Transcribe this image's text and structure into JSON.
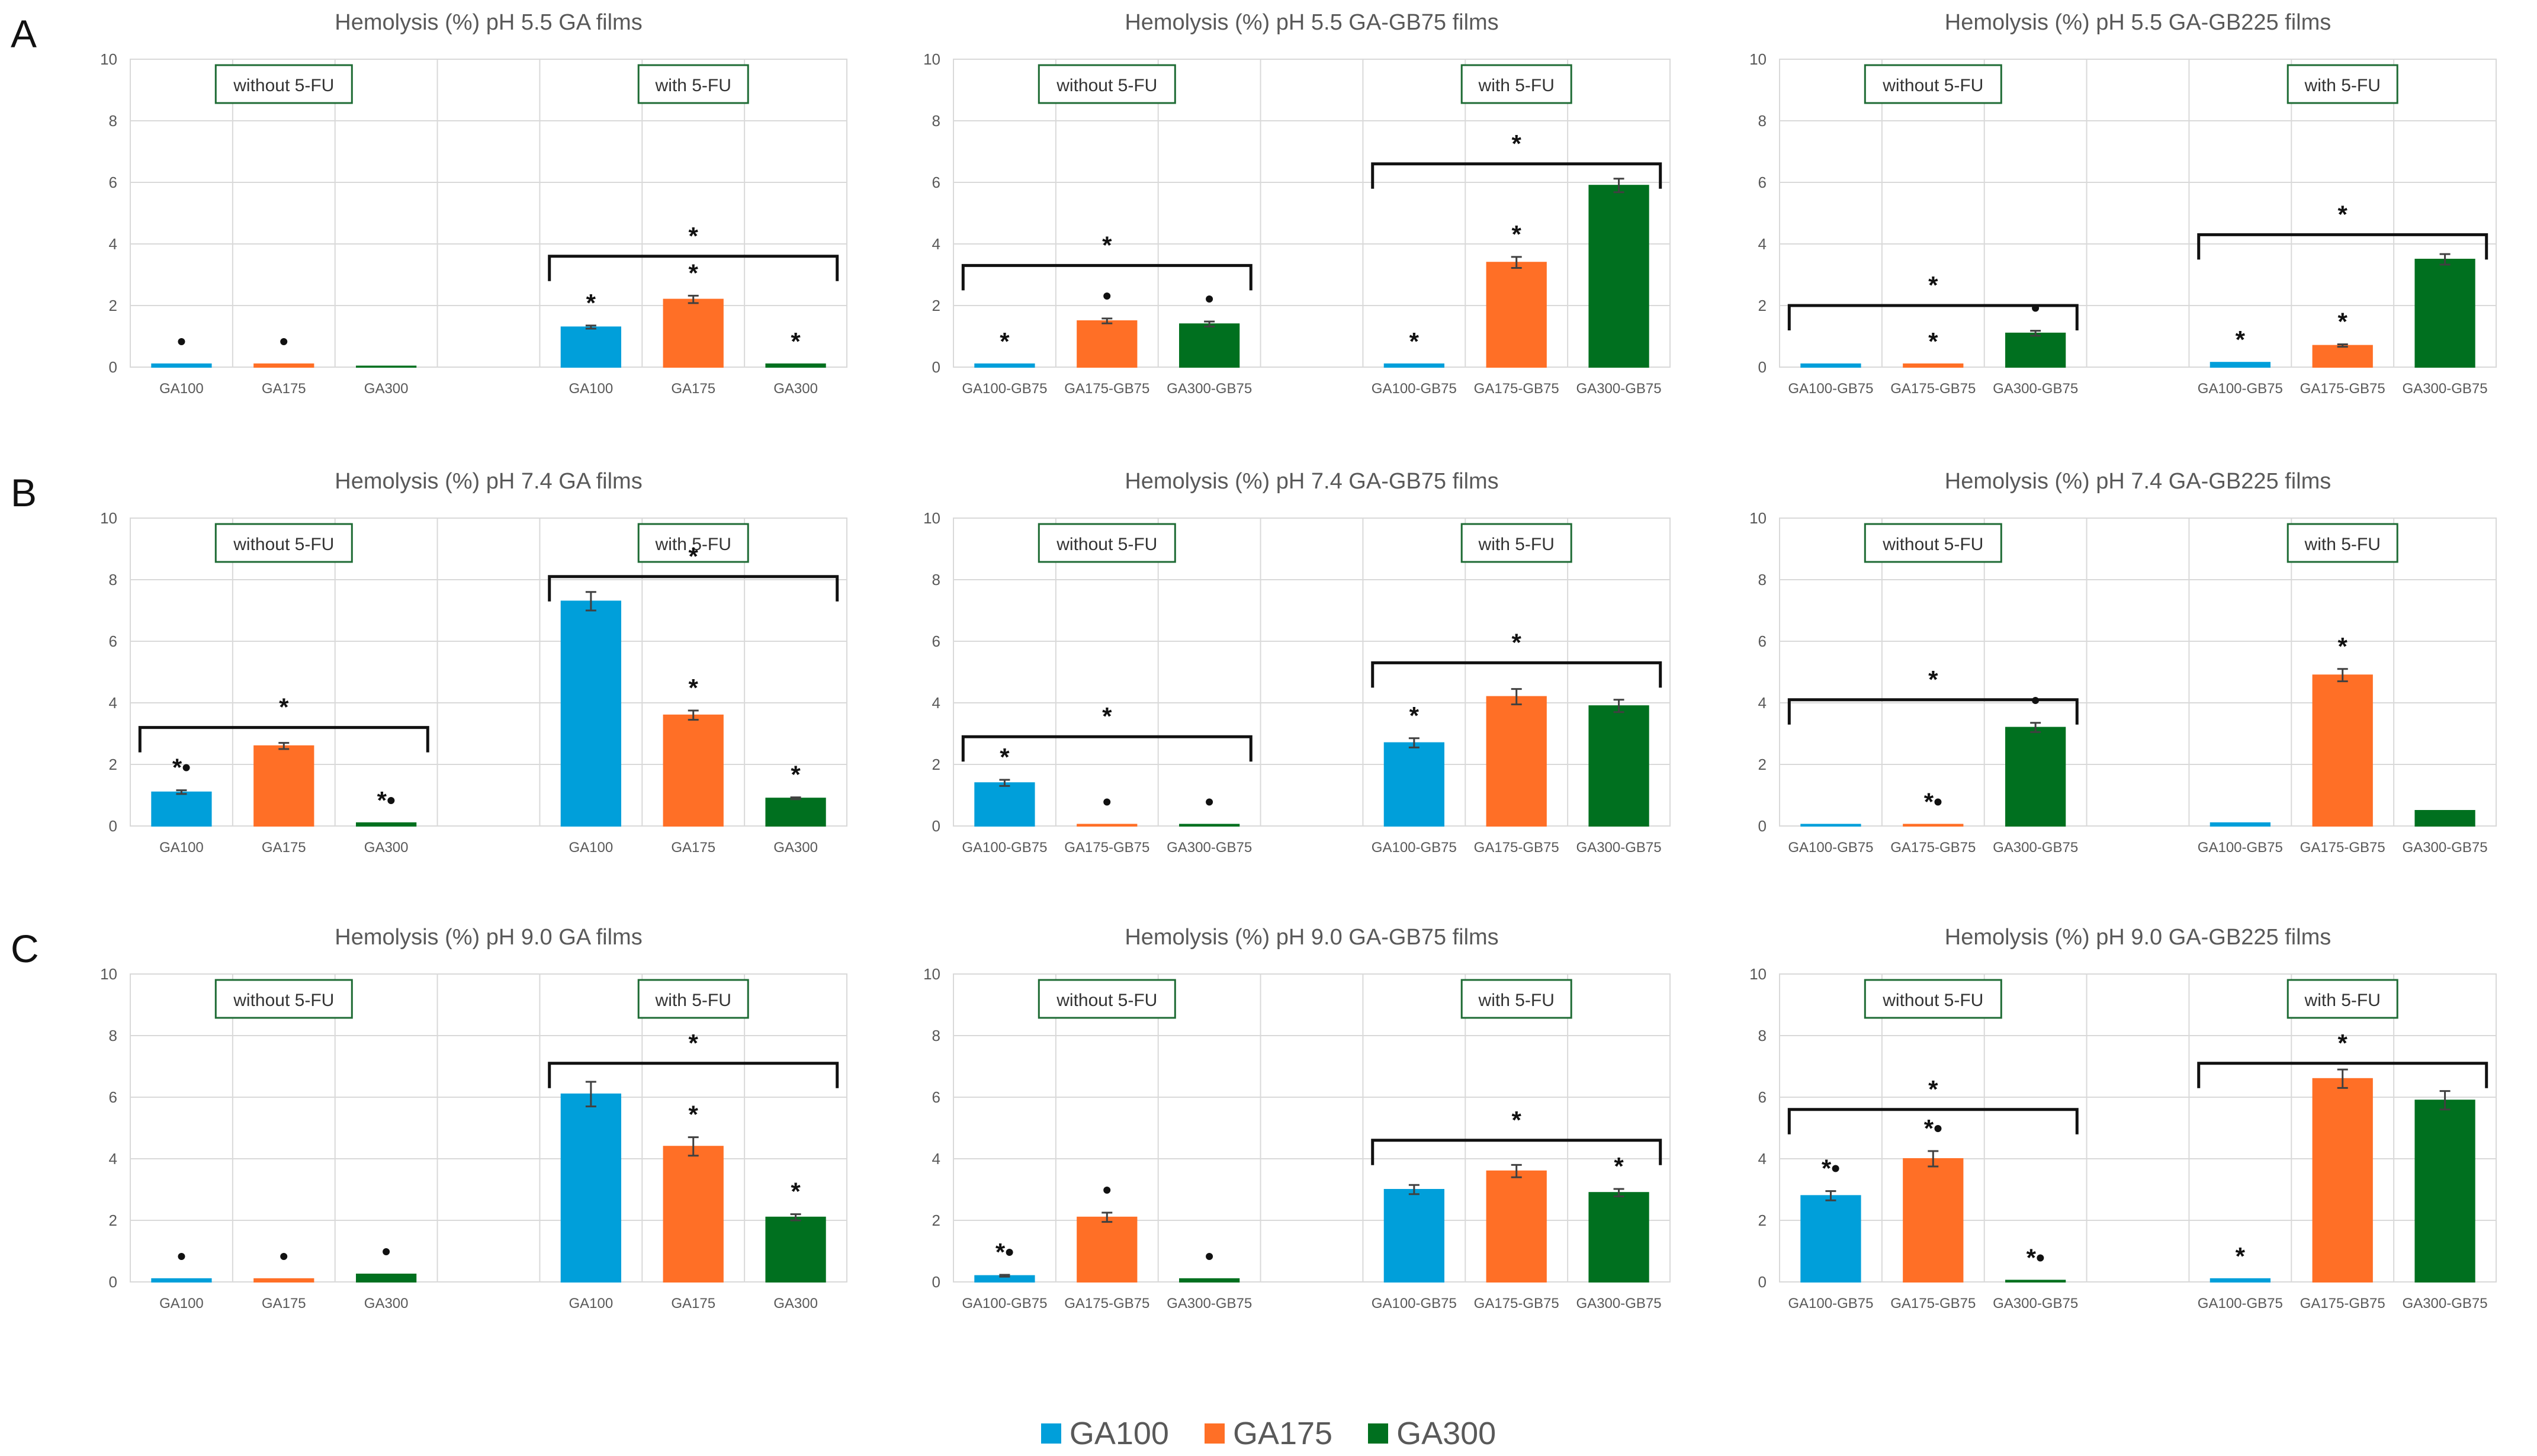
{
  "panels_letters": [
    "A",
    "B",
    "C"
  ],
  "legend": [
    {
      "name": "GA100",
      "color": "#009fda"
    },
    {
      "name": "GA175",
      "color": "#ff6f26"
    },
    {
      "name": "GA300",
      "color": "#00701f"
    }
  ],
  "chart_data": [
    {
      "type": "bar",
      "title": "Hemolysis (%) pH 5.5 GA films",
      "ylim": [
        0,
        10
      ],
      "yticks": [
        0,
        2,
        4,
        6,
        8,
        10
      ],
      "groups": [
        "without 5-FU",
        "with 5-FU"
      ],
      "categories": [
        "GA100",
        "GA175",
        "GA300",
        "GA100",
        "GA175",
        "GA300"
      ],
      "values": [
        0.1,
        0.1,
        0.0,
        1.3,
        2.2,
        0.1
      ],
      "errors": [
        0.0,
        0.0,
        0.0,
        0.05,
        0.12,
        0.0
      ],
      "markers": [
        "•",
        "•",
        "",
        "*",
        "*",
        "*"
      ],
      "brackets": [
        {
          "group": 1,
          "y": 3.6,
          "label": "*"
        }
      ]
    },
    {
      "type": "bar",
      "title": "Hemolysis (%) pH 5.5 GA-GB75 films",
      "ylim": [
        0,
        10
      ],
      "yticks": [
        0,
        2,
        4,
        6,
        8,
        10
      ],
      "groups": [
        "without 5-FU",
        "with 5-FU"
      ],
      "categories": [
        "GA100-GB75",
        "GA175-GB75",
        "GA300-GB75",
        "GA100-GB75",
        "GA175-GB75",
        "GA300-GB75"
      ],
      "values": [
        0.1,
        1.5,
        1.4,
        0.1,
        3.4,
        5.9
      ],
      "errors": [
        0.0,
        0.08,
        0.08,
        0.0,
        0.18,
        0.22
      ],
      "markers": [
        "*",
        "•",
        "•",
        "*",
        "*",
        ""
      ],
      "brackets": [
        {
          "group": 0,
          "y": 3.3,
          "label": "*"
        },
        {
          "group": 1,
          "y": 6.6,
          "label": "*"
        }
      ]
    },
    {
      "type": "bar",
      "title": "Hemolysis (%) pH 5.5 GA-GB225 films",
      "ylim": [
        0,
        10
      ],
      "yticks": [
        0,
        2,
        4,
        6,
        8,
        10
      ],
      "groups": [
        "without 5-FU",
        "with 5-FU"
      ],
      "categories": [
        "GA100-GB75",
        "GA175-GB75",
        "GA300-GB75",
        "GA100-GB75",
        "GA175-GB75",
        "GA300-GB75"
      ],
      "values": [
        0.1,
        0.1,
        1.1,
        0.15,
        0.7,
        3.5
      ],
      "errors": [
        0.0,
        0.0,
        0.08,
        0.0,
        0.04,
        0.17
      ],
      "markers": [
        "",
        "*",
        "•",
        "*",
        "*",
        ""
      ],
      "brackets": [
        {
          "group": 0,
          "y": 2.0,
          "label": "*"
        },
        {
          "group": 1,
          "y": 4.3,
          "label": "*"
        }
      ]
    },
    {
      "type": "bar",
      "title": "Hemolysis (%) pH 7.4  GA films",
      "ylim": [
        0,
        10
      ],
      "yticks": [
        0,
        2,
        4,
        6,
        8,
        10
      ],
      "groups": [
        "without 5-FU",
        "with 5-FU"
      ],
      "categories": [
        "GA100",
        "GA175",
        "GA300",
        "GA100",
        "GA175",
        "GA300"
      ],
      "values": [
        1.1,
        2.6,
        0.1,
        7.3,
        3.6,
        0.9
      ],
      "errors": [
        0.06,
        0.1,
        0.0,
        0.3,
        0.15,
        0.03
      ],
      "markers": [
        "*•",
        "",
        "*•",
        "",
        "*",
        "*"
      ],
      "brackets": [
        {
          "group": 0,
          "y": 3.2,
          "label": "*"
        },
        {
          "group": 1,
          "y": 8.1,
          "label": "*"
        }
      ]
    },
    {
      "type": "bar",
      "title": "Hemolysis (%) pH 7.4 GA-GB75 films",
      "ylim": [
        0,
        10
      ],
      "yticks": [
        0,
        2,
        4,
        6,
        8,
        10
      ],
      "groups": [
        "without 5-FU",
        "with 5-FU"
      ],
      "categories": [
        "GA100-GB75",
        "GA175-GB75",
        "GA300-GB75",
        "GA100-GB75",
        "GA175-GB75",
        "GA300-GB75"
      ],
      "values": [
        1.4,
        0.05,
        0.05,
        2.7,
        4.2,
        3.9
      ],
      "errors": [
        0.1,
        0.0,
        0.0,
        0.15,
        0.25,
        0.2
      ],
      "markers": [
        "*",
        "•",
        "•",
        "*",
        "",
        ""
      ],
      "brackets": [
        {
          "group": 0,
          "y": 2.9,
          "label": "*"
        },
        {
          "group": 1,
          "y": 5.3,
          "label": "*"
        }
      ]
    },
    {
      "type": "bar",
      "title": "Hemolysis (%) pH 7.4 GA-GB225 films",
      "ylim": [
        0,
        10
      ],
      "yticks": [
        0,
        2,
        4,
        6,
        8,
        10
      ],
      "groups": [
        "without 5-FU",
        "with 5-FU"
      ],
      "categories": [
        "GA100-GB75",
        "GA175-GB75",
        "GA300-GB75",
        "GA100-GB75",
        "GA175-GB75",
        "GA300-GB75"
      ],
      "values": [
        0.05,
        0.05,
        3.2,
        0.1,
        4.9,
        0.5
      ],
      "errors": [
        0.0,
        0.0,
        0.15,
        0.0,
        0.2,
        0.0
      ],
      "markers": [
        "",
        "*•",
        "•",
        "",
        "*",
        ""
      ],
      "brackets": [
        {
          "group": 0,
          "y": 4.1,
          "label": "*"
        }
      ]
    },
    {
      "type": "bar",
      "title": "Hemolysis (%) pH 9.0 GA films",
      "ylim": [
        0,
        10
      ],
      "yticks": [
        0,
        2,
        4,
        6,
        8,
        10
      ],
      "groups": [
        "without 5-FU",
        "with 5-FU"
      ],
      "categories": [
        "GA100",
        "GA175",
        "GA300",
        "GA100",
        "GA175",
        "GA300"
      ],
      "values": [
        0.1,
        0.1,
        0.25,
        6.1,
        4.4,
        2.1
      ],
      "errors": [
        0.0,
        0.0,
        0.0,
        0.4,
        0.3,
        0.1
      ],
      "markers": [
        "•",
        "•",
        "•",
        "",
        "*",
        "*"
      ],
      "brackets": [
        {
          "group": 1,
          "y": 7.1,
          "label": "*"
        }
      ]
    },
    {
      "type": "bar",
      "title": "Hemolysis (%) pH 9.0 GA-GB75 films",
      "ylim": [
        0,
        10
      ],
      "yticks": [
        0,
        2,
        4,
        6,
        8,
        10
      ],
      "groups": [
        "without 5-FU",
        "with 5-FU"
      ],
      "categories": [
        "GA100-GB75",
        "GA175-GB75",
        "GA300-GB75",
        "GA100-GB75",
        "GA175-GB75",
        "GA300-GB75"
      ],
      "values": [
        0.2,
        2.1,
        0.1,
        3.0,
        3.6,
        2.9
      ],
      "errors": [
        0.03,
        0.15,
        0.0,
        0.15,
        0.2,
        0.12
      ],
      "markers": [
        "*•",
        "•",
        "•",
        "",
        "",
        "*"
      ],
      "brackets": [
        {
          "group": 1,
          "y": 4.6,
          "label": "*"
        }
      ]
    },
    {
      "type": "bar",
      "title": "Hemolysis (%) pH 9.0 GA-GB225 films",
      "ylim": [
        0,
        10
      ],
      "yticks": [
        0,
        2,
        4,
        6,
        8,
        10
      ],
      "groups": [
        "without 5-FU",
        "with 5-FU"
      ],
      "categories": [
        "GA100-GB75",
        "GA175-GB75",
        "GA300-GB75",
        "GA100-GB75",
        "GA175-GB75",
        "GA300-GB75"
      ],
      "values": [
        2.8,
        4.0,
        0.05,
        0.1,
        6.6,
        5.9
      ],
      "errors": [
        0.15,
        0.25,
        0.0,
        0.0,
        0.3,
        0.3
      ],
      "markers": [
        "*•",
        "*•",
        "*•",
        "*",
        "",
        ""
      ],
      "brackets": [
        {
          "group": 0,
          "y": 5.6,
          "label": "*"
        },
        {
          "group": 1,
          "y": 7.1,
          "label": "*"
        }
      ]
    }
  ]
}
